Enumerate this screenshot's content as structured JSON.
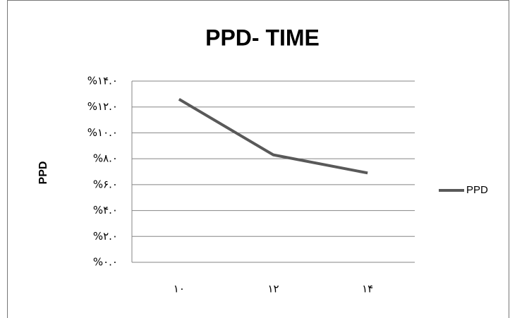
{
  "chart_data": {
    "type": "line",
    "title": "PPD- TIME",
    "y_label": "PPD",
    "categories": [
      "۱۰",
      "۱۲",
      "۱۴"
    ],
    "series": [
      {
        "name": "PPD",
        "color": "#595959",
        "values": [
          12.6,
          8.3,
          6.9
        ]
      }
    ],
    "ylim": [
      0,
      14
    ],
    "yticks": [
      {
        "value": 0,
        "label": "%۰.۰"
      },
      {
        "value": 2,
        "label": "%۲.۰"
      },
      {
        "value": 4,
        "label": "%۴.۰"
      },
      {
        "value": 6,
        "label": "%۶.۰"
      },
      {
        "value": 8,
        "label": "%۸.۰"
      },
      {
        "value": 10,
        "label": "%۱۰.۰"
      },
      {
        "value": 12,
        "label": "%۱۲.۰"
      },
      {
        "value": 14,
        "label": "%۱۴.۰"
      }
    ],
    "grid": true,
    "legend": "right"
  }
}
